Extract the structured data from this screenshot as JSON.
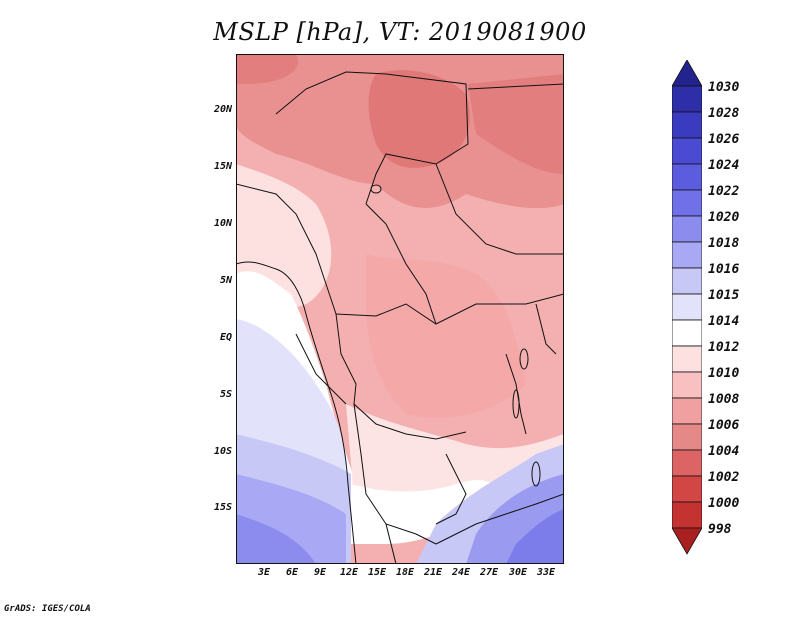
{
  "title": "MSLP [hPa], VT: 2019081900",
  "lat_labels": [
    "20N",
    "15N",
    "10N",
    "5N",
    "EQ",
    "5S",
    "10S",
    "15S"
  ],
  "lon_labels": [
    "3E",
    "6E",
    "9E",
    "12E",
    "15E",
    "18E",
    "21E",
    "24E",
    "27E",
    "30E",
    "33E"
  ],
  "colorbar": {
    "labels": [
      "1030",
      "1028",
      "1026",
      "1024",
      "1022",
      "1020",
      "1018",
      "1016",
      "1015",
      "1014",
      "1012",
      "1010",
      "1008",
      "1006",
      "1004",
      "1002",
      "1000",
      "998"
    ],
    "colors": [
      "#23238e",
      "#2e2ea8",
      "#3b3bc0",
      "#4a4ad2",
      "#5c5cdf",
      "#7070e8",
      "#8c8cef",
      "#a8a8f4",
      "#c8c8f7",
      "#e2e2fb",
      "#ffffff",
      "#fde0e0",
      "#f8c0c0",
      "#f0a0a0",
      "#e58888",
      "#dc6464",
      "#d24646",
      "#c43232",
      "#a82020"
    ]
  },
  "credit": "GrADS: IGES/COLA"
}
